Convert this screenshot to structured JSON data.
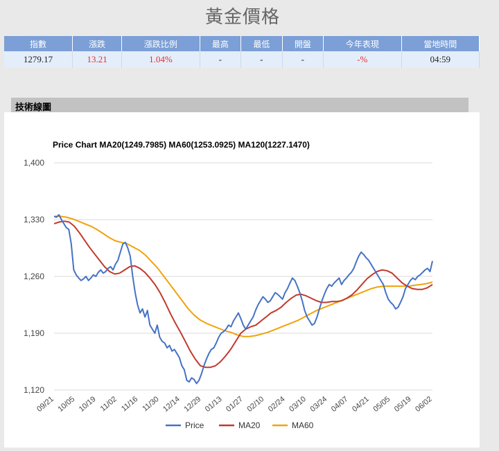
{
  "page": {
    "title": "黃金價格"
  },
  "quote_table": {
    "headers": [
      "指數",
      "漲跌",
      "漲跌比例",
      "最高",
      "最低",
      "開盤",
      "今年表現",
      "當地時間"
    ],
    "values": [
      "1279.17",
      "13.21",
      "1.04%",
      "-",
      "-",
      "-",
      "-%",
      "04:59"
    ]
  },
  "section": {
    "title": "技術線圖"
  },
  "colors": {
    "price": "#4472c4",
    "ma20": "#c0392b",
    "ma60": "#f0a20a",
    "header_bg": "#7b9fd6",
    "up": "#e0302a"
  },
  "chart_data": {
    "type": "line",
    "title": "Price Chart MA20(1249.7985) MA60(1253.0925) MA120(1227.1470)",
    "xlabel": "",
    "ylabel": "",
    "ylim": [
      1120,
      1400
    ],
    "y_ticks": [
      "1,120",
      "1,190",
      "1,260",
      "1,330",
      "1,400"
    ],
    "y_tick_values": [
      1120,
      1190,
      1260,
      1330,
      1400
    ],
    "x_ticks": [
      "09/21",
      "10/05",
      "10/19",
      "11/02",
      "11/16",
      "11/30",
      "12/14",
      "12/29",
      "01/13",
      "01/27",
      "02/10",
      "02/24",
      "03/10",
      "03/24",
      "04/07",
      "04/21",
      "05/05",
      "05/19",
      "06/02"
    ],
    "legend": "bottom",
    "series": [
      {
        "name": "Price",
        "color": "#4472c4",
        "values": [
          1334,
          1333,
          1336,
          1330,
          1325,
          1320,
          1318,
          1300,
          1268,
          1262,
          1258,
          1255,
          1257,
          1260,
          1255,
          1258,
          1262,
          1260,
          1265,
          1268,
          1264,
          1266,
          1270,
          1272,
          1268,
          1275,
          1280,
          1290,
          1300,
          1302,
          1295,
          1285,
          1260,
          1240,
          1225,
          1215,
          1220,
          1210,
          1218,
          1200,
          1195,
          1190,
          1200,
          1185,
          1180,
          1178,
          1172,
          1175,
          1168,
          1170,
          1165,
          1160,
          1150,
          1145,
          1132,
          1130,
          1135,
          1133,
          1128,
          1132,
          1140,
          1150,
          1158,
          1165,
          1170,
          1172,
          1178,
          1185,
          1190,
          1192,
          1195,
          1200,
          1198,
          1205,
          1210,
          1215,
          1208,
          1200,
          1195,
          1200,
          1205,
          1210,
          1218,
          1225,
          1230,
          1235,
          1232,
          1228,
          1230,
          1235,
          1240,
          1238,
          1235,
          1232,
          1240,
          1245,
          1252,
          1258,
          1255,
          1248,
          1240,
          1230,
          1218,
          1210,
          1205,
          1200,
          1202,
          1210,
          1220,
          1230,
          1238,
          1245,
          1250,
          1248,
          1252,
          1255,
          1258,
          1250,
          1255,
          1258,
          1262,
          1265,
          1270,
          1278,
          1285,
          1290,
          1287,
          1283,
          1280,
          1275,
          1270,
          1265,
          1260,
          1255,
          1250,
          1240,
          1232,
          1228,
          1225,
          1220,
          1222,
          1228,
          1235,
          1245,
          1250,
          1255,
          1258,
          1256,
          1260,
          1262,
          1265,
          1268,
          1270,
          1266,
          1279
        ]
      },
      {
        "name": "MA20",
        "color": "#c0392b",
        "values": [
          1325,
          1327,
          1328,
          1327,
          1322,
          1314,
          1305,
          1296,
          1288,
          1280,
          1272,
          1266,
          1263,
          1264,
          1268,
          1272,
          1273,
          1270,
          1265,
          1258,
          1250,
          1240,
          1228,
          1215,
          1203,
          1192,
          1180,
          1168,
          1158,
          1150,
          1148,
          1148,
          1150,
          1155,
          1162,
          1170,
          1180,
          1190,
          1195,
          1198,
          1200,
          1205,
          1210,
          1215,
          1218,
          1222,
          1228,
          1233,
          1237,
          1238,
          1236,
          1233,
          1230,
          1228,
          1228,
          1229,
          1229,
          1230,
          1233,
          1237,
          1243,
          1250,
          1257,
          1262,
          1266,
          1268,
          1267,
          1264,
          1258,
          1252,
          1248,
          1245,
          1244,
          1244,
          1246,
          1250
        ]
      },
      {
        "name": "MA60",
        "color": "#f0a20a",
        "values": [
          1334,
          1334,
          1333,
          1331,
          1328,
          1325,
          1322,
          1318,
          1313,
          1308,
          1304,
          1302,
          1300,
          1296,
          1292,
          1286,
          1278,
          1270,
          1260,
          1250,
          1240,
          1230,
          1220,
          1212,
          1206,
          1202,
          1199,
          1196,
          1193,
          1191,
          1188,
          1186,
          1186,
          1187,
          1189,
          1191,
          1194,
          1197,
          1200,
          1203,
          1206,
          1210,
          1214,
          1218,
          1221,
          1224,
          1227,
          1230,
          1233,
          1236,
          1239,
          1242,
          1245,
          1247,
          1248,
          1248,
          1248,
          1248,
          1248,
          1249,
          1250,
          1251,
          1253
        ]
      }
    ]
  }
}
